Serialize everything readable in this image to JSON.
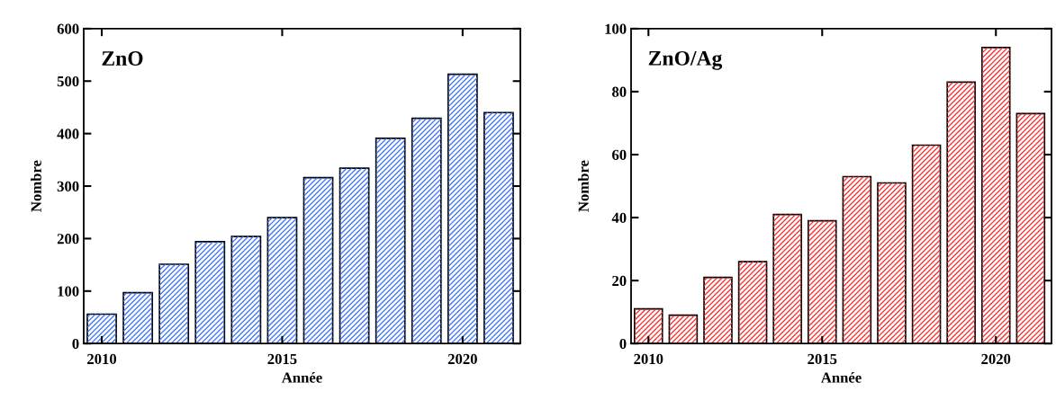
{
  "chart_data": [
    {
      "type": "bar",
      "title": "ZnO",
      "xlabel": "Année",
      "ylabel": "Nombre",
      "x": [
        2010,
        2011,
        2012,
        2013,
        2014,
        2015,
        2016,
        2017,
        2018,
        2019,
        2020,
        2021
      ],
      "series": [
        {
          "color": "#4a7dff",
          "values": [
            56,
            97,
            151,
            194,
            204,
            240,
            316,
            334,
            391,
            429,
            513,
            440
          ]
        }
      ],
      "xlim": [
        2009.5,
        2021.6
      ],
      "xticks": [
        2010,
        2015,
        2020
      ],
      "ylim": [
        0,
        600
      ],
      "yticks": [
        0,
        100,
        200,
        300,
        400,
        500,
        600
      ],
      "grid": false
    },
    {
      "type": "bar",
      "title": "ZnO/Ag",
      "xlabel": "Année",
      "ylabel": "Nombre",
      "x": [
        2010,
        2011,
        2012,
        2013,
        2014,
        2015,
        2016,
        2017,
        2018,
        2019,
        2020,
        2021
      ],
      "series": [
        {
          "color": "#ff3b3b",
          "values": [
            11,
            9,
            21,
            26,
            41,
            39,
            53,
            51,
            63,
            83,
            94,
            73
          ]
        }
      ],
      "xlim": [
        2009.5,
        2021.6
      ],
      "xticks": [
        2010,
        2015,
        2020
      ],
      "ylim": [
        0,
        100
      ],
      "yticks": [
        0,
        20,
        40,
        60,
        80,
        100
      ],
      "grid": false
    }
  ]
}
